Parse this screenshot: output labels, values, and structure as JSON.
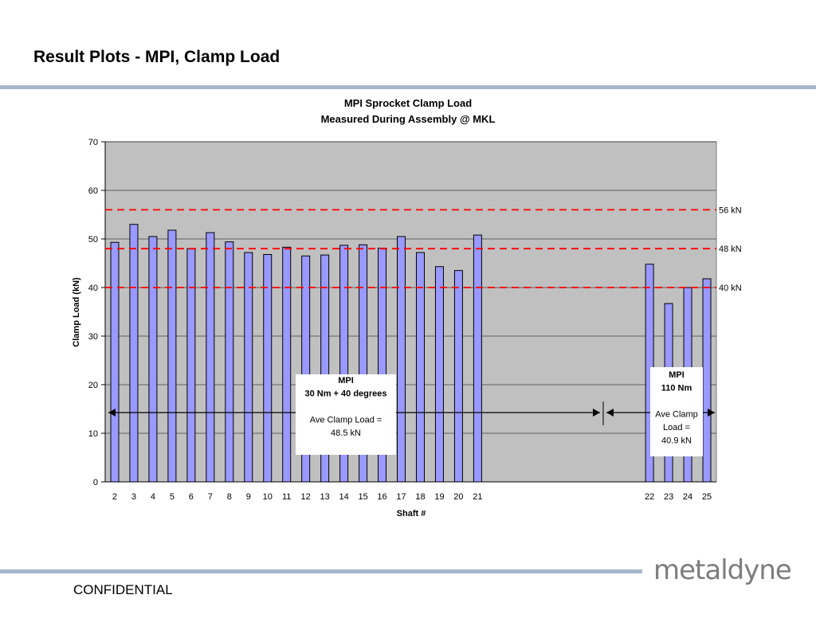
{
  "slide": {
    "title": "Result Plots - MPI, Clamp Load",
    "footer": "CONFIDENTIAL",
    "logo_text": "metaldyne"
  },
  "chart_data": {
    "type": "bar",
    "title": "MPI Sprocket Clamp Load",
    "subtitle": "Measured During Assembly @ MKL",
    "xlabel": "Shaft #",
    "ylabel": "Clamp Load (kN)",
    "ylim": [
      0,
      70
    ],
    "yticks": [
      0,
      10,
      20,
      30,
      40,
      50,
      60,
      70
    ],
    "grid": true,
    "categories": [
      "2",
      "3",
      "4",
      "5",
      "6",
      "7",
      "8",
      "9",
      "10",
      "11",
      "12",
      "13",
      "14",
      "15",
      "16",
      "17",
      "18",
      "19",
      "20",
      "21",
      "",
      "",
      "",
      "",
      "",
      "",
      "",
      "",
      "22",
      "23",
      "24",
      "25"
    ],
    "values": [
      49.3,
      53.0,
      50.5,
      51.8,
      48.0,
      51.3,
      49.4,
      47.2,
      46.8,
      48.3,
      46.5,
      46.7,
      48.7,
      48.8,
      48.1,
      50.5,
      47.2,
      44.3,
      43.5,
      50.8,
      null,
      null,
      null,
      null,
      null,
      null,
      null,
      null,
      44.8,
      36.7,
      40.0,
      41.8
    ],
    "reference_lines": [
      {
        "value": 56,
        "label": "56 kN"
      },
      {
        "value": 48,
        "label": "48 kN"
      },
      {
        "value": 40,
        "label": "40 kN"
      }
    ],
    "colors": {
      "plot_bg": "#c0c0c0",
      "bar_fill": "#9999ff",
      "bar_stroke": "#000000",
      "ref_line": "#ff0000",
      "grid": "#000000"
    },
    "annotations": [
      {
        "lines": [
          "MPI",
          "30 Nm + 40 degrees",
          "",
          "Ave Clamp Load =",
          "48.5 kN"
        ],
        "bold_lines": 2
      },
      {
        "lines": [
          "MPI",
          "110 Nm",
          "",
          "Ave Clamp",
          "Load =",
          "40.9 kN"
        ],
        "bold_lines": 2
      }
    ]
  }
}
